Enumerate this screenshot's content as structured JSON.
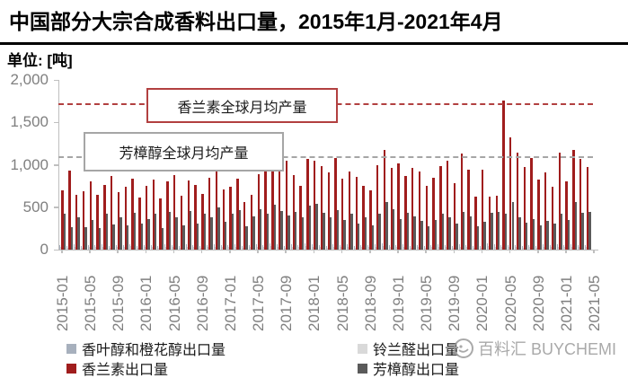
{
  "header": {
    "title": "中国部分大宗合成香料出口量，2015年1月-2021年4月",
    "unit_label": "单位: [吨]"
  },
  "chart_data": {
    "type": "bar",
    "title": "中国部分大宗合成香料出口量，2015年1月-2021年4月",
    "unit": "吨",
    "ylim": [
      0,
      2000
    ],
    "ytick_labels": [
      "2,000",
      "1,500",
      "1,000",
      "500",
      "0"
    ],
    "x_tick_labels": [
      "2015-01",
      "2015-05",
      "2015-09",
      "2016-01",
      "2016-05",
      "2016-09",
      "2017-01",
      "2017-05",
      "2017-09",
      "2018-01",
      "2018-05",
      "2018-09",
      "2019-01",
      "2019-05",
      "2019-09",
      "2020-01",
      "2020-05",
      "2020-09",
      "2021-01",
      "2021-05"
    ],
    "x_start": "2015-01",
    "x_end": "2021-04",
    "grid": false,
    "legend_position": "bottom",
    "series": [
      {
        "name": "香叶醇和橙花醇出口量",
        "color": "#a7b0bd",
        "values": [
          55,
          48,
          60,
          42,
          58,
          50,
          62,
          45,
          57,
          52,
          66,
          40,
          58,
          50,
          45,
          62,
          55,
          48,
          60,
          52,
          44,
          58,
          65,
          50,
          55,
          62,
          40,
          52,
          66,
          58,
          72,
          60,
          48,
          64,
          55,
          70,
          62,
          55,
          48,
          66,
          52,
          60,
          45,
          58,
          50,
          64,
          72,
          58,
          55,
          60,
          48,
          52,
          44,
          56,
          62,
          58,
          46,
          66,
          58,
          40,
          44,
          70,
          62,
          58,
          50,
          56,
          46,
          52,
          44,
          60,
          52,
          64,
          56,
          62,
          54,
          58
        ]
      },
      {
        "name": "铃兰醛出口量",
        "color": "#d9d9d9",
        "values": [
          30,
          26,
          34,
          22,
          32,
          28,
          36,
          24,
          30,
          28,
          38,
          22,
          32,
          28,
          24,
          34,
          30,
          26,
          34,
          28,
          22,
          32,
          36,
          28,
          30,
          34,
          22,
          28,
          36,
          32,
          40,
          34,
          26,
          36,
          30,
          38,
          34,
          30,
          26,
          36,
          28,
          32,
          24,
          32,
          28,
          36,
          40,
          32,
          30,
          34,
          26,
          28,
          22,
          30,
          34,
          32,
          24,
          36,
          32,
          22,
          24,
          38,
          34,
          32,
          28,
          30,
          24,
          28,
          22,
          32,
          28,
          36,
          30,
          34,
          28,
          32
        ]
      },
      {
        "name": "香兰素出口量",
        "color": "#a01d1d",
        "values": [
          700,
          930,
          650,
          690,
          805,
          645,
          760,
          870,
          680,
          745,
          840,
          615,
          755,
          830,
          600,
          805,
          875,
          640,
          820,
          760,
          660,
          850,
          930,
          705,
          745,
          840,
          560,
          650,
          885,
          1040,
          1060,
          920,
          1050,
          880,
          755,
          1065,
          1050,
          980,
          915,
          1075,
          840,
          920,
          855,
          755,
          700,
          1000,
          1175,
          960,
          1020,
          870,
          960,
          920,
          755,
          850,
          980,
          1045,
          780,
          1135,
          940,
          620,
          940,
          620,
          640,
          1760,
          1320,
          1145,
          975,
          1075,
          825,
          910,
          745,
          1140,
          800,
          1170,
          1065,
          975
        ]
      },
      {
        "name": "芳樟醇出口量",
        "color": "#5a5a5a",
        "values": [
          420,
          260,
          385,
          270,
          350,
          255,
          420,
          300,
          380,
          290,
          430,
          310,
          360,
          420,
          255,
          440,
          380,
          290,
          460,
          310,
          420,
          380,
          500,
          330,
          420,
          470,
          280,
          390,
          480,
          420,
          530,
          460,
          400,
          440,
          380,
          520,
          540,
          430,
          380,
          470,
          350,
          420,
          310,
          380,
          290,
          420,
          560,
          480,
          360,
          430,
          390,
          340,
          280,
          350,
          420,
          380,
          310,
          450,
          390,
          280,
          330,
          430,
          440,
          420,
          560,
          380,
          320,
          360,
          290,
          340,
          310,
          420,
          350,
          560,
          430,
          450
        ]
      }
    ],
    "reference_lines": [
      {
        "label": "香兰素全球月均产量",
        "value": 1730,
        "color": "#b24040",
        "style": "dashed"
      },
      {
        "label": "芳樟醇全球月均产量",
        "value": 1100,
        "color": "#a6a6a6",
        "style": "dashed"
      }
    ]
  },
  "legend": {
    "items": [
      {
        "label": "香叶醇和橙花醇出口量",
        "color": "#a7b0bd"
      },
      {
        "label": "铃兰醛出口量",
        "color": "#d9d9d9"
      },
      {
        "label": "香兰素出口量",
        "color": "#a01d1d"
      },
      {
        "label": "芳樟醇出口量",
        "color": "#5a5a5a"
      }
    ]
  },
  "watermark": {
    "text": "百料汇 BUYCHEMI"
  }
}
